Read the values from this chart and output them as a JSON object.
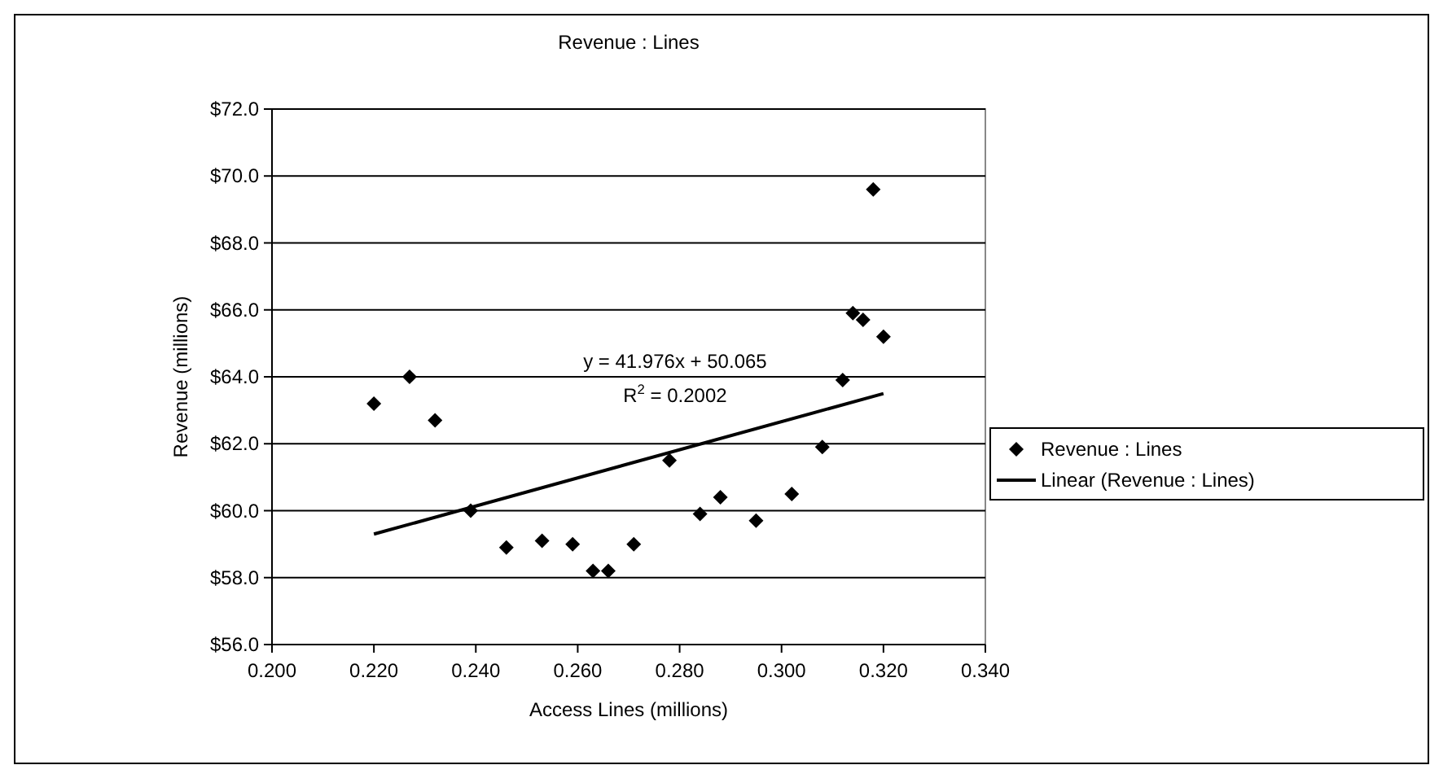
{
  "chart_data": {
    "type": "scatter",
    "title": "Revenue : Lines",
    "xlabel": "Access Lines (millions)",
    "ylabel": "Revenue (millions)",
    "xlim": [
      0.2,
      0.34
    ],
    "xticks": [
      {
        "value": 0.2,
        "label": "0.200"
      },
      {
        "value": 0.22,
        "label": "0.220"
      },
      {
        "value": 0.24,
        "label": "0.240"
      },
      {
        "value": 0.26,
        "label": "0.260"
      },
      {
        "value": 0.28,
        "label": "0.280"
      },
      {
        "value": 0.3,
        "label": "0.300"
      },
      {
        "value": 0.32,
        "label": "0.320"
      },
      {
        "value": 0.34,
        "label": "0.340"
      }
    ],
    "ylim": [
      56,
      72
    ],
    "yticks": [
      {
        "value": 56,
        "label": "$56.0"
      },
      {
        "value": 58,
        "label": "$58.0"
      },
      {
        "value": 60,
        "label": "$60.0"
      },
      {
        "value": 62,
        "label": "$62.0"
      },
      {
        "value": 64,
        "label": "$64.0"
      },
      {
        "value": 66,
        "label": "$66.0"
      },
      {
        "value": 68,
        "label": "$68.0"
      },
      {
        "value": 70,
        "label": "$70.0"
      },
      {
        "value": 72,
        "label": "$72.0"
      }
    ],
    "grid": "y",
    "legend": "right",
    "series": [
      {
        "name": "Revenue : Lines",
        "marker": "diamond",
        "color": "#000000",
        "x": [
          0.22,
          0.227,
          0.232,
          0.239,
          0.246,
          0.253,
          0.259,
          0.263,
          0.266,
          0.271,
          0.278,
          0.284,
          0.288,
          0.295,
          0.302,
          0.308,
          0.312,
          0.314,
          0.316,
          0.318,
          0.32
        ],
        "values": [
          63.2,
          64.0,
          62.7,
          60.0,
          58.9,
          59.1,
          59.0,
          58.2,
          58.2,
          59.0,
          61.5,
          59.9,
          60.4,
          59.7,
          60.5,
          61.9,
          63.9,
          65.9,
          65.7,
          69.6,
          65.2
        ]
      },
      {
        "name": "Linear (Revenue : Lines)",
        "type": "line",
        "marker": "none",
        "color": "#000000",
        "x": [
          0.22,
          0.32
        ],
        "values": [
          59.3,
          63.5
        ]
      }
    ],
    "annotations": [
      "y = 41.976x + 50.065",
      "R$^{2}$ = 0.2002"
    ]
  }
}
